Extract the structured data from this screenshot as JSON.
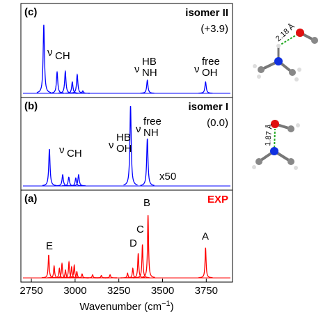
{
  "chart_data": [
    {
      "type": "spectrum",
      "panel_label": "(c)",
      "title": "isomer II",
      "subtitle": "(+3.9)",
      "color": "#0000ff",
      "xlim": [
        2690,
        3900
      ],
      "ylim": [
        0,
        100
      ],
      "peaks": {
        "x": [
          2821,
          2897,
          2944,
          2984,
          3012,
          3044,
          3413,
          3746
        ],
        "values": [
          84,
          26,
          27,
          14,
          23,
          3,
          16,
          14
        ]
      },
      "annotations": [
        {
          "text": "ν",
          "sub": "CH"
        },
        {
          "text": "ν",
          "sub": "NH",
          "sup": "HB"
        },
        {
          "text": "ν",
          "sub": "OH",
          "sup": "free"
        }
      ]
    },
    {
      "type": "spectrum",
      "panel_label": "(b)",
      "title": "isomer I",
      "subtitle": "(0.0)",
      "color": "#0000ff",
      "xlim": [
        2690,
        3900
      ],
      "ylim": [
        0,
        100
      ],
      "peaks": {
        "x": [
          2853,
          2929,
          2964,
          3004,
          3020,
          3317,
          3413
        ],
        "values": [
          46,
          14,
          11,
          10,
          14,
          100,
          59
        ]
      },
      "annotations": [
        {
          "text": "ν",
          "sub": "CH"
        },
        {
          "text": "ν",
          "sub": "OH",
          "sup": "HB"
        },
        {
          "text": "ν",
          "sub": "NH",
          "sup": "free"
        },
        {
          "text": "x50"
        }
      ]
    },
    {
      "type": "spectrum",
      "panel_label": "(a)",
      "title": "EXP",
      "color": "#ff0000",
      "xlim": [
        2690,
        3900
      ],
      "ylim": [
        0,
        100
      ],
      "xticks": [
        2750,
        3000,
        3250,
        3500,
        3750
      ],
      "xlabel": {
        "text": "Wavenumber (cm",
        "sup": "−1",
        "end": ")"
      },
      "peaks": {
        "x": [
          2849,
          2880,
          2910,
          2925,
          2945,
          2965,
          2980,
          2995,
          3010,
          3040,
          3100,
          3150,
          3200,
          3300,
          3330,
          3361,
          3385,
          3417,
          3746
        ],
        "values": [
          29,
          15,
          12,
          18,
          10,
          20,
          14,
          16,
          8,
          5,
          4,
          3,
          4,
          6,
          12,
          31,
          42,
          79,
          38
        ]
      },
      "annotations": [
        {
          "text": "E"
        },
        {
          "text": "D"
        },
        {
          "text": "C"
        },
        {
          "text": "B"
        },
        {
          "text": "A"
        }
      ]
    }
  ],
  "structures": [
    {
      "distance": "2.18 Å"
    },
    {
      "distance": "1.87 Å"
    }
  ]
}
